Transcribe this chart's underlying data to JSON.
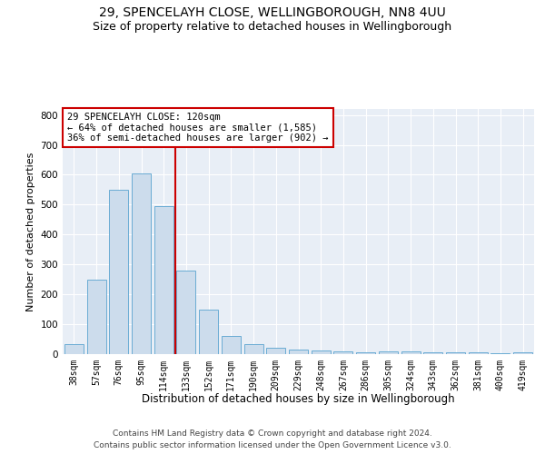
{
  "title_line1": "29, SPENCELAYH CLOSE, WELLINGBOROUGH, NN8 4UU",
  "title_line2": "Size of property relative to detached houses in Wellingborough",
  "xlabel": "Distribution of detached houses by size in Wellingborough",
  "ylabel": "Number of detached properties",
  "categories": [
    "38sqm",
    "57sqm",
    "76sqm",
    "95sqm",
    "114sqm",
    "133sqm",
    "152sqm",
    "171sqm",
    "190sqm",
    "209sqm",
    "229sqm",
    "248sqm",
    "267sqm",
    "286sqm",
    "305sqm",
    "324sqm",
    "343sqm",
    "362sqm",
    "381sqm",
    "400sqm",
    "419sqm"
  ],
  "values": [
    33,
    248,
    550,
    605,
    495,
    278,
    148,
    62,
    32,
    20,
    16,
    12,
    10,
    6,
    8,
    8,
    5,
    5,
    5,
    2,
    7
  ],
  "bar_color": "#ccdcec",
  "bar_edge_color": "#6aacd4",
  "highlight_line_color": "#cc0000",
  "annotation_text": "29 SPENCELAYH CLOSE: 120sqm\n← 64% of detached houses are smaller (1,585)\n36% of semi-detached houses are larger (902) →",
  "annotation_box_color": "#ffffff",
  "annotation_box_edge": "#cc0000",
  "ylim": [
    0,
    820
  ],
  "yticks": [
    0,
    100,
    200,
    300,
    400,
    500,
    600,
    700,
    800
  ],
  "footer_line1": "Contains HM Land Registry data © Crown copyright and database right 2024.",
  "footer_line2": "Contains public sector information licensed under the Open Government Licence v3.0.",
  "bg_color": "#e8eef6",
  "fig_bg_color": "#ffffff",
  "grid_color": "#ffffff",
  "title_fontsize": 10,
  "subtitle_fontsize": 9,
  "tick_fontsize": 7,
  "ylabel_fontsize": 8,
  "xlabel_fontsize": 8.5,
  "annotation_fontsize": 7.5,
  "footer_fontsize": 6.5
}
